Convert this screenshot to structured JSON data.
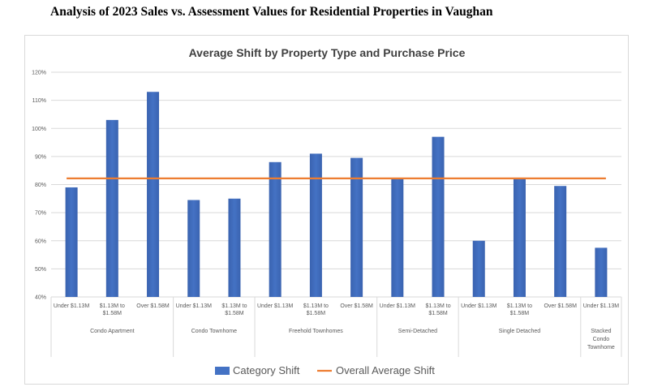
{
  "page": {
    "heading": "Analysis of 2023 Sales vs. Assessment Values for Residential Properties in Vaughan"
  },
  "chart_data": {
    "type": "bar",
    "title": "Average Shift by Property Type and Purchase Price",
    "xlabel": "",
    "ylabel": "",
    "ylim": [
      40,
      120
    ],
    "yticks": [
      40,
      50,
      60,
      70,
      80,
      90,
      100,
      110,
      120
    ],
    "ytick_format": "percent",
    "grid": true,
    "legend_position": "bottom",
    "colors": {
      "bar": "#4472c4",
      "overall_line": "#ed7d31",
      "grid": "#d9d9d9",
      "text": "#595959"
    },
    "groups": [
      {
        "label": "Condo Apartment",
        "categories": [
          "Under $1.13M",
          "$1.13M to $1.58M",
          "Over $1.58M"
        ]
      },
      {
        "label": "Condo Townhome",
        "categories": [
          "Under $1.13M",
          "$1.13M to $1.58M"
        ]
      },
      {
        "label": "Freehold Townhomes",
        "categories": [
          "Under $1.13M",
          "$1.13M to $1.58M",
          "Over $1.58M"
        ]
      },
      {
        "label": "Semi-Detached",
        "categories": [
          "Under $1.13M",
          "$1.13M to $1.58M"
        ]
      },
      {
        "label": "Single Detached",
        "categories": [
          "Under $1.13M",
          "$1.13M to $1.58M",
          "Over $1.58M"
        ]
      },
      {
        "label": "Stacked Condo Townhome",
        "categories": [
          "Under $1.13M"
        ]
      }
    ],
    "series": [
      {
        "name": "Category Shift",
        "type": "bar",
        "values": [
          79,
          103,
          113,
          74.5,
          75,
          88,
          91,
          89.5,
          82,
          97,
          60,
          82,
          79.5,
          57.5
        ]
      },
      {
        "name": "Overall Average Shift",
        "type": "line",
        "value": 82.2
      }
    ]
  }
}
